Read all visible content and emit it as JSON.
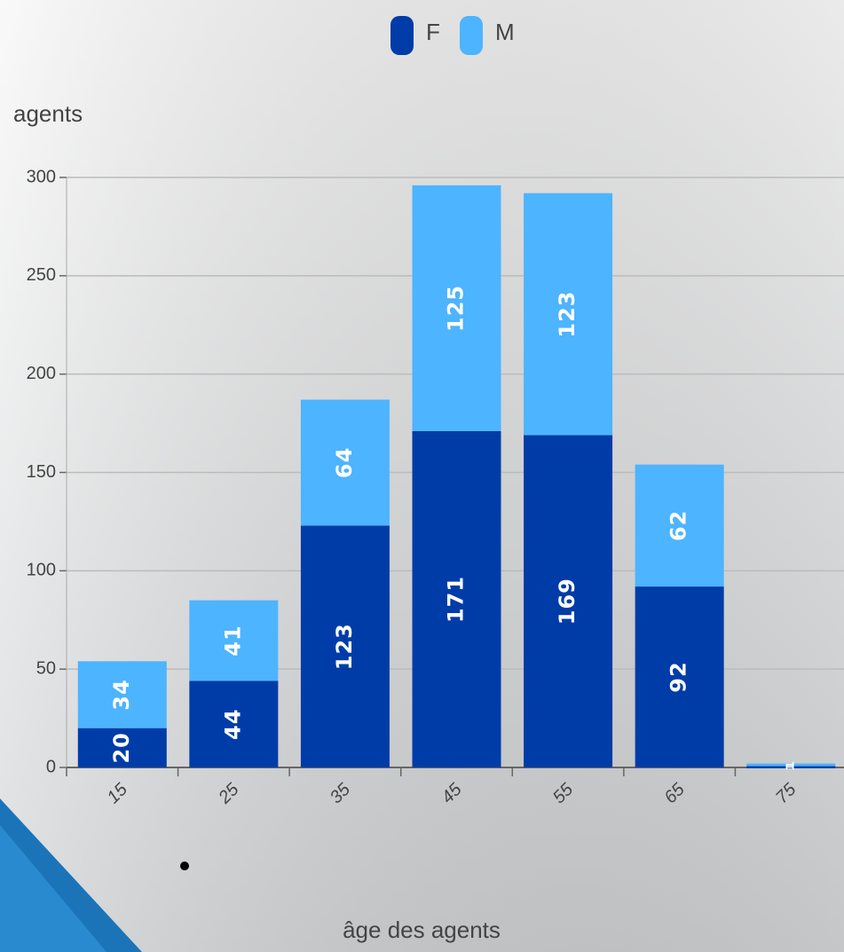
{
  "chart_data": {
    "type": "stacked_bar",
    "y_label": "agents",
    "x_label": "âge des agents",
    "categories": [
      "15",
      "25",
      "35",
      "45",
      "55",
      "65",
      "75"
    ],
    "series": [
      {
        "name": "F",
        "color": "#003ca8",
        "values": [
          20,
          44,
          123,
          171,
          169,
          92,
          1
        ]
      },
      {
        "name": "M",
        "color": "#4db4ff",
        "values": [
          34,
          41,
          64,
          125,
          123,
          62,
          1
        ]
      }
    ],
    "ylim": [
      0,
      300
    ],
    "yticks": [
      0,
      50,
      100,
      150,
      200,
      250,
      300
    ],
    "grid": true,
    "legend": "top"
  }
}
